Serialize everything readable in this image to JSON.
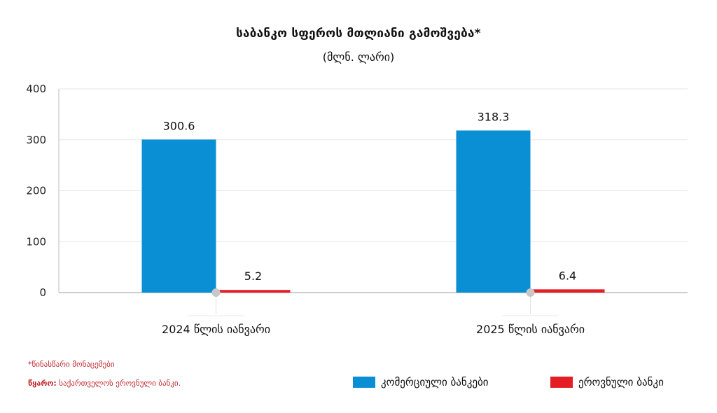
{
  "title": "საბანკო სფეროს მთლიანი გამოშვება*",
  "subtitle": "(მლნ. ლარი)",
  "footnote": "*წინასწარი მონაცემები",
  "source": {
    "label": "წყარო:",
    "text": "საქართველოს ეროვნული ბანკი."
  },
  "colors": {
    "commercial": "#0b8fd4",
    "national": "#e31e24",
    "grid": "#e6e6e6",
    "axis": "#bdbdbd",
    "marker": "#c8c8c8"
  },
  "chart_data": {
    "type": "bar",
    "categories": [
      "2024 წლის იანვარი",
      "2025 წლის იანვარი"
    ],
    "series": [
      {
        "name": "კომერციული ბანკები",
        "values": [
          300.6,
          318.3
        ]
      },
      {
        "name": "ეროვნული ბანკი",
        "values": [
          5.2,
          6.4
        ]
      }
    ],
    "data_labels": [
      [
        "300.6",
        "318.3"
      ],
      [
        "5.2",
        "6.4"
      ]
    ],
    "ylim": [
      0,
      400
    ],
    "yticks": [
      0,
      100,
      200,
      300,
      400
    ],
    "grid": true,
    "legend_position": "bottom-right"
  }
}
